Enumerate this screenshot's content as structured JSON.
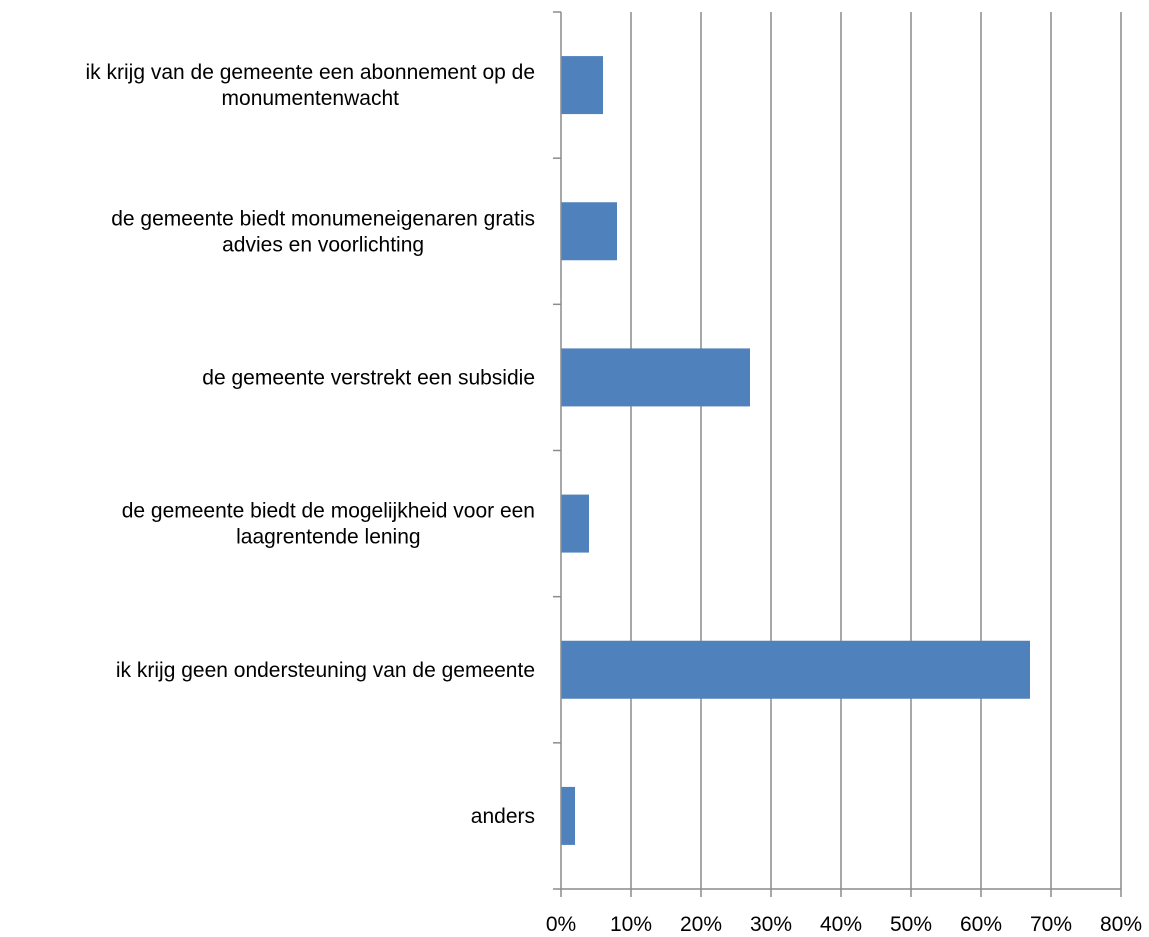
{
  "chart_data": {
    "type": "bar",
    "orientation": "horizontal",
    "categories": [
      [
        "ik krijg van de gemeente een abonnement op de",
        "monumentenwacht"
      ],
      [
        "de gemeente biedt monumeneigenaren gratis",
        "advies en voorlichting"
      ],
      [
        "de gemeente verstrekt een subsidie"
      ],
      [
        "de gemeente biedt de mogelijkheid voor een",
        "laagrentende lening"
      ],
      [
        "ik krijg geen ondersteuning van de gemeente"
      ],
      [
        "anders"
      ]
    ],
    "values": [
      6,
      8,
      27,
      4,
      67,
      2
    ],
    "xlim": [
      0,
      80
    ],
    "xticks": [
      "0%",
      "10%",
      "20%",
      "30%",
      "40%",
      "50%",
      "60%",
      "70%",
      "80%"
    ],
    "title": "",
    "xlabel": "",
    "ylabel": "",
    "grid": "vertical",
    "legend": "none",
    "bar_color": "#4f81bd",
    "grid_color": "#8c8c8c"
  }
}
